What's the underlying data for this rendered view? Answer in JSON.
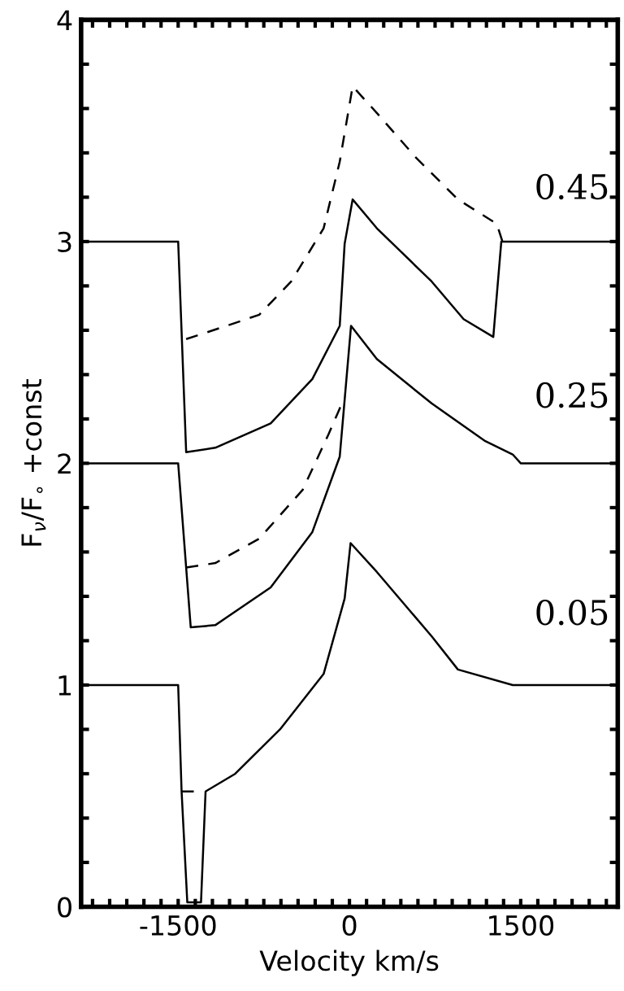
{
  "chart_data": {
    "type": "line",
    "xlabel": "Velocity km/s",
    "ylabel": "F$_{ν}$/F$_{∘}$ +const",
    "xlim": [
      -2350,
      2350
    ],
    "ylim": [
      0,
      4
    ],
    "xticks": [
      {
        "value": -2250,
        "label": null
      },
      {
        "value": -2100,
        "label": null
      },
      {
        "value": -1950,
        "label": null
      },
      {
        "value": -1800,
        "label": null
      },
      {
        "value": -1650,
        "label": null
      },
      -1500,
      {
        "value": -1350,
        "label": null
      },
      {
        "value": -1200,
        "label": null
      },
      {
        "value": -1050,
        "label": null
      },
      {
        "value": -900,
        "label": null
      },
      {
        "value": -750,
        "label": null
      },
      {
        "value": -600,
        "label": null
      },
      {
        "value": -450,
        "label": null
      },
      {
        "value": -300,
        "label": null
      },
      {
        "value": -150,
        "label": null
      },
      0,
      {
        "value": 150,
        "label": null
      },
      {
        "value": 300,
        "label": null
      },
      {
        "value": 450,
        "label": null
      },
      {
        "value": 600,
        "label": null
      },
      {
        "value": 750,
        "label": null
      },
      {
        "value": 900,
        "label": null
      },
      {
        "value": 1050,
        "label": null
      },
      {
        "value": 1200,
        "label": null
      },
      {
        "value": 1350,
        "label": null
      },
      1500,
      {
        "value": 1650,
        "label": null
      },
      {
        "value": 1800,
        "label": null
      },
      {
        "value": 1950,
        "label": null
      },
      {
        "value": 2100,
        "label": null
      },
      {
        "value": 2250,
        "label": null
      }
    ],
    "yticks": [
      0,
      {
        "value": 0.2,
        "label": null
      },
      {
        "value": 0.4,
        "label": null
      },
      {
        "value": 0.6,
        "label": null
      },
      {
        "value": 0.8,
        "label": null
      },
      1,
      {
        "value": 1.2,
        "label": null
      },
      {
        "value": 1.4,
        "label": null
      },
      {
        "value": 1.6,
        "label": null
      },
      {
        "value": 1.8,
        "label": null
      },
      2,
      {
        "value": 2.2,
        "label": null
      },
      {
        "value": 2.4,
        "label": null
      },
      {
        "value": 2.6,
        "label": null
      },
      {
        "value": 2.8,
        "label": null
      },
      3,
      {
        "value": 3.2,
        "label": null
      },
      {
        "value": 3.4,
        "label": null
      },
      {
        "value": 3.6,
        "label": null
      },
      {
        "value": 3.8,
        "label": null
      },
      4
    ],
    "grid": false,
    "legend": false,
    "marker": "none",
    "series": [
      {
        "color": "#000000",
        "line_style": "solid",
        "x": [
          -2350,
          -1500,
          -1470,
          -1420,
          -1300,
          -1260,
          -1000,
          -608,
          -226,
          -42,
          10,
          240,
          720,
          950,
          1430,
          1500,
          2350
        ],
        "values": [
          1,
          1,
          0.52,
          0.02,
          0.02,
          0.52,
          0.6,
          0.8,
          1.05,
          1.39,
          1.64,
          1.51,
          1.22,
          1.07,
          1.0,
          1,
          1
        ]
      },
      {
        "color": "#000000",
        "line_style": "dashed",
        "x": [
          -1470,
          -1300
        ],
        "values": [
          0.52,
          0.52
        ]
      },
      {
        "color": "#000000",
        "line_style": "solid",
        "x": [
          -2350,
          -1500,
          -1390,
          -1175,
          -690,
          -325,
          -85,
          14,
          240,
          720,
          1190,
          1430,
          1500,
          2350
        ],
        "values": [
          2,
          2,
          1.26,
          1.27,
          1.44,
          1.69,
          2.03,
          2.62,
          2.47,
          2.27,
          2.1,
          2.04,
          2,
          2
        ]
      },
      {
        "color": "#000000",
        "line_style": "dashed",
        "x": [
          -1430,
          -1175,
          -790,
          -410,
          -184,
          -57
        ],
        "values": [
          1.53,
          1.55,
          1.66,
          1.88,
          2.13,
          2.28
        ]
      },
      {
        "color": "#000000",
        "line_style": "solid",
        "x": [
          -2350,
          -1500,
          -1430,
          -1175,
          -690,
          -325,
          -85,
          -42,
          28,
          240,
          720,
          1000,
          1260,
          1330,
          1360,
          2350
        ],
        "values": [
          3,
          3,
          2.05,
          2.07,
          2.18,
          2.38,
          2.62,
          2.99,
          3.19,
          3.06,
          2.82,
          2.65,
          2.57,
          3.0,
          3,
          3
        ]
      },
      {
        "color": "#000000",
        "line_style": "dashed",
        "x": [
          -1430,
          -1075,
          -790,
          -510,
          -226,
          -85,
          28,
          240,
          580,
          950,
          1290,
          1340
        ],
        "values": [
          2.56,
          2.62,
          2.67,
          2.82,
          3.06,
          3.36,
          3.7,
          3.58,
          3.38,
          3.19,
          3.08,
          3.0
        ]
      }
    ],
    "annotations": [
      "0.45",
      "0.25",
      "0.05"
    ]
  }
}
